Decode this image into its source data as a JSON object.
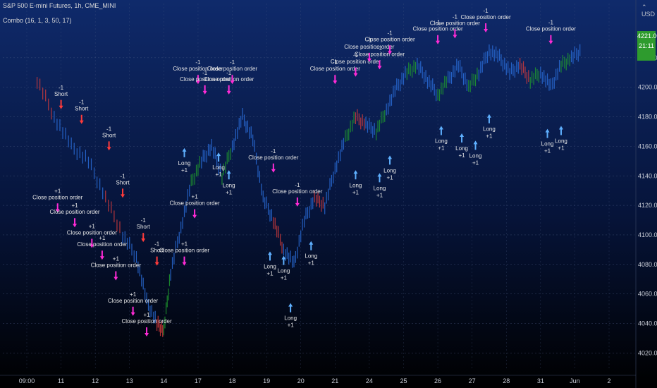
{
  "header": {
    "symbol": "S&P 500 E-mini Futures, 1h, CME_MINI",
    "study": "Combo (16, 1, 3, 50, 17)",
    "currency": "USD",
    "last_price": "4221.00",
    "countdown": "21:11"
  },
  "colors": {
    "background_top": "#0f2a6b",
    "background_bottom": "#000000",
    "bar_blue": "#2a6dd9",
    "bar_green": "#1f9a2e",
    "bar_red": "#d23b3b",
    "long_arrow": "#5fb0ff",
    "short_arrow": "#ff3b3b",
    "close_marker": "#ff2bd6",
    "price_badge": "#2e9b2e",
    "text": "#e6e6e6"
  },
  "chart_data": {
    "type": "candlestick",
    "title": "S&P 500 E-mini Futures, 1h, CME_MINI",
    "x_ticks": [
      "09:00",
      "11",
      "12",
      "13",
      "14",
      "17",
      "18",
      "19",
      "20",
      "21",
      "24",
      "25",
      "26",
      "27",
      "28",
      "31",
      "Jun",
      "2"
    ],
    "y_ticks": [
      4020,
      4040,
      4060,
      4080,
      4100,
      4120,
      4140,
      4160,
      4180,
      4200,
      4220
    ],
    "ylim": [
      4013,
      4240
    ],
    "grid": true,
    "price_path": [
      [
        0.3,
        4205
      ],
      [
        0.8,
        4180
      ],
      [
        1.3,
        4160
      ],
      [
        1.8,
        4150
      ],
      [
        2.3,
        4125
      ],
      [
        2.8,
        4100
      ],
      [
        3.2,
        4085
      ],
      [
        3.5,
        4055
      ],
      [
        3.8,
        4040
      ],
      [
        4.0,
        4035
      ],
      [
        4.2,
        4075
      ],
      [
        4.5,
        4105
      ],
      [
        4.8,
        4135
      ],
      [
        5.1,
        4150
      ],
      [
        5.4,
        4160
      ],
      [
        5.7,
        4140
      ],
      [
        6.0,
        4160
      ],
      [
        6.3,
        4180
      ],
      [
        6.6,
        4165
      ],
      [
        6.9,
        4125
      ],
      [
        7.2,
        4110
      ],
      [
        7.5,
        4090
      ],
      [
        7.8,
        4080
      ],
      [
        8.1,
        4110
      ],
      [
        8.4,
        4125
      ],
      [
        8.7,
        4120
      ],
      [
        9.0,
        4145
      ],
      [
        9.3,
        4165
      ],
      [
        9.6,
        4180
      ],
      [
        9.9,
        4175
      ],
      [
        10.2,
        4170
      ],
      [
        10.5,
        4185
      ],
      [
        10.8,
        4200
      ],
      [
        11.1,
        4210
      ],
      [
        11.4,
        4215
      ],
      [
        11.7,
        4205
      ],
      [
        12.0,
        4195
      ],
      [
        12.3,
        4205
      ],
      [
        12.6,
        4215
      ],
      [
        12.9,
        4200
      ],
      [
        13.2,
        4210
      ],
      [
        13.5,
        4225
      ],
      [
        13.8,
        4220
      ],
      [
        14.1,
        4210
      ],
      [
        14.4,
        4215
      ],
      [
        14.7,
        4205
      ],
      [
        15.0,
        4210
      ],
      [
        15.3,
        4200
      ],
      [
        15.6,
        4215
      ],
      [
        15.9,
        4220
      ],
      [
        16.2,
        4225
      ]
    ],
    "signals": [
      {
        "label": "Short",
        "value": "-1",
        "x": 1.0,
        "y": 4188
      },
      {
        "label": "Short",
        "value": "-1",
        "x": 1.6,
        "y": 4178
      },
      {
        "label": "Short",
        "value": "-1",
        "x": 2.4,
        "y": 4160
      },
      {
        "label": "Short",
        "value": "-1",
        "x": 2.8,
        "y": 4128
      },
      {
        "label": "Short",
        "value": "-1",
        "x": 3.4,
        "y": 4098
      },
      {
        "label": "Short",
        "value": "-1",
        "x": 3.8,
        "y": 4082
      },
      {
        "label": "Close position order",
        "value": "+1",
        "x": 0.9,
        "y": 4118
      },
      {
        "label": "Close position order",
        "value": "+1",
        "x": 1.4,
        "y": 4108
      },
      {
        "label": "Close position order",
        "value": "+1",
        "x": 1.9,
        "y": 4094
      },
      {
        "label": "Close position order",
        "value": "+1",
        "x": 2.2,
        "y": 4086
      },
      {
        "label": "Close position order",
        "value": "+1",
        "x": 2.6,
        "y": 4072
      },
      {
        "label": "Close position order",
        "value": "+1",
        "x": 3.1,
        "y": 4048
      },
      {
        "label": "Close position order",
        "value": "+1",
        "x": 3.5,
        "y": 4034
      },
      {
        "label": "Close position order",
        "value": "+1",
        "x": 4.6,
        "y": 4082
      },
      {
        "label": "Close position order",
        "value": "+1",
        "x": 4.9,
        "y": 4114
      },
      {
        "label": "Close position order",
        "value": "-1",
        "x": 5.0,
        "y": 4205
      },
      {
        "label": "Close position order",
        "value": "-1",
        "x": 5.2,
        "y": 4198
      },
      {
        "label": "Close position order",
        "value": "-1",
        "x": 5.9,
        "y": 4198
      },
      {
        "label": "Close position order",
        "value": "-1",
        "x": 6.0,
        "y": 4205
      },
      {
        "label": "Close position order",
        "value": "-1",
        "x": 7.2,
        "y": 4145
      },
      {
        "label": "Close position order",
        "value": "-1",
        "x": 7.9,
        "y": 4122
      },
      {
        "label": "Close position order",
        "value": "-1",
        "x": 9.0,
        "y": 4205
      },
      {
        "label": "Close position order",
        "value": "-1",
        "x": 9.6,
        "y": 4210
      },
      {
        "label": "Close position order",
        "value": "-1",
        "x": 10.0,
        "y": 4220
      },
      {
        "label": "Close position order",
        "value": "-1",
        "x": 10.3,
        "y": 4215
      },
      {
        "label": "Close position order",
        "value": "-1",
        "x": 10.6,
        "y": 4225
      },
      {
        "label": "Close position order",
        "value": "-1",
        "x": 12.0,
        "y": 4232
      },
      {
        "label": "Close position order",
        "value": "-1",
        "x": 12.5,
        "y": 4236
      },
      {
        "label": "Close position order",
        "value": "-1",
        "x": 13.4,
        "y": 4240
      },
      {
        "label": "Close position order",
        "value": "-1",
        "x": 15.3,
        "y": 4232
      },
      {
        "label": "Long",
        "value": "+1",
        "x": 4.6,
        "y": 4155
      },
      {
        "label": "Long",
        "value": "+1",
        "x": 5.6,
        "y": 4152
      },
      {
        "label": "Long",
        "value": "+1",
        "x": 5.9,
        "y": 4140
      },
      {
        "label": "Long",
        "value": "+1",
        "x": 7.1,
        "y": 4085
      },
      {
        "label": "Long",
        "value": "+1",
        "x": 7.5,
        "y": 4082
      },
      {
        "label": "Long",
        "value": "+1",
        "x": 7.7,
        "y": 4050
      },
      {
        "label": "Long",
        "value": "+1",
        "x": 8.3,
        "y": 4092
      },
      {
        "label": "Long",
        "value": "+1",
        "x": 9.6,
        "y": 4140
      },
      {
        "label": "Long",
        "value": "+1",
        "x": 10.3,
        "y": 4138
      },
      {
        "label": "Long",
        "value": "+1",
        "x": 10.6,
        "y": 4150
      },
      {
        "label": "Long",
        "value": "+1",
        "x": 12.1,
        "y": 4170
      },
      {
        "label": "Long",
        "value": "+1",
        "x": 12.7,
        "y": 4165
      },
      {
        "label": "Long",
        "value": "+1",
        "x": 13.1,
        "y": 4160
      },
      {
        "label": "Long",
        "value": "+1",
        "x": 13.5,
        "y": 4178
      },
      {
        "label": "Long",
        "value": "+1",
        "x": 15.2,
        "y": 4168
      },
      {
        "label": "Long",
        "value": "+1",
        "x": 15.6,
        "y": 4170
      }
    ]
  }
}
